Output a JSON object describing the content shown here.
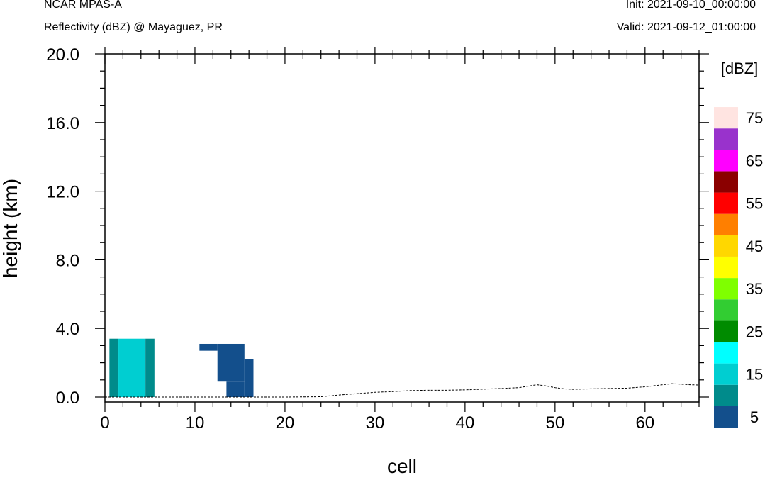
{
  "header": {
    "left_title": "NCAR MPAS-A",
    "left_subtitle": "Reflectivity (dBZ) @ Mayaguez, PR",
    "init": "Init: 2021-09-10_00:00:00",
    "valid": "Valid: 2021-09-12_01:00:00"
  },
  "chart_data": {
    "type": "heatmap",
    "xlabel": "cell",
    "ylabel": "height (km)",
    "xlim": [
      0,
      66
    ],
    "ylim": [
      0,
      20
    ],
    "x_ticks": [
      0,
      10,
      20,
      30,
      40,
      50,
      60
    ],
    "x_tick_labels": [
      "0",
      "10",
      "20",
      "30",
      "40",
      "50",
      "60"
    ],
    "y_ticks": [
      0,
      4,
      8,
      12,
      16,
      20
    ],
    "y_tick_labels": [
      "0.0",
      "4.0",
      "8.0",
      "12.0",
      "16.0",
      "20.0"
    ],
    "colorbar": {
      "unit_label": "[dBZ]",
      "levels": [
        5,
        10,
        15,
        20,
        25,
        30,
        35,
        40,
        45,
        50,
        55,
        60,
        65,
        70,
        75
      ],
      "labels": [
        "5",
        "15",
        "25",
        "35",
        "45",
        "55",
        "65",
        "75"
      ],
      "colors": [
        "#134f8c",
        "#008b8b",
        "#00ced1",
        "#00ffff",
        "#008b00",
        "#32cd32",
        "#7fff00",
        "#ffff00",
        "#ffd700",
        "#ff7f00",
        "#ff0000",
        "#8b0000",
        "#ff00ff",
        "#9932cc",
        "#ffe4e1"
      ]
    },
    "cells": [
      {
        "x0": 0.5,
        "x1": 1.5,
        "y0": 0.0,
        "y1": 3.4,
        "dbz": 10
      },
      {
        "x0": 1.5,
        "x1": 4.5,
        "y0": 0.0,
        "y1": 3.4,
        "dbz": 15
      },
      {
        "x0": 4.5,
        "x1": 5.5,
        "y0": 0.0,
        "y1": 3.4,
        "dbz": 10
      },
      {
        "x0": 10.5,
        "x1": 12.5,
        "y0": 2.7,
        "y1": 3.1,
        "dbz": 5
      },
      {
        "x0": 12.5,
        "x1": 15.5,
        "y0": 0.9,
        "y1": 3.1,
        "dbz": 5
      },
      {
        "x0": 13.5,
        "x1": 15.5,
        "y0": 0.0,
        "y1": 0.9,
        "dbz": 5
      },
      {
        "x0": 15.5,
        "x1": 16.5,
        "y0": 0.0,
        "y1": 2.2,
        "dbz": 5
      }
    ],
    "terrain": {
      "x": [
        0,
        6,
        20,
        24,
        26,
        28,
        30,
        32,
        34,
        36,
        38,
        40,
        42,
        44,
        46,
        48,
        49,
        50,
        51,
        52,
        54,
        56,
        58,
        60,
        62,
        63,
        64,
        65,
        66
      ],
      "y": [
        0.0,
        0.0,
        0.0,
        0.02,
        0.12,
        0.2,
        0.28,
        0.32,
        0.38,
        0.4,
        0.4,
        0.42,
        0.46,
        0.5,
        0.55,
        0.72,
        0.65,
        0.55,
        0.48,
        0.45,
        0.48,
        0.5,
        0.52,
        0.6,
        0.72,
        0.78,
        0.75,
        0.72,
        0.7
      ]
    }
  }
}
